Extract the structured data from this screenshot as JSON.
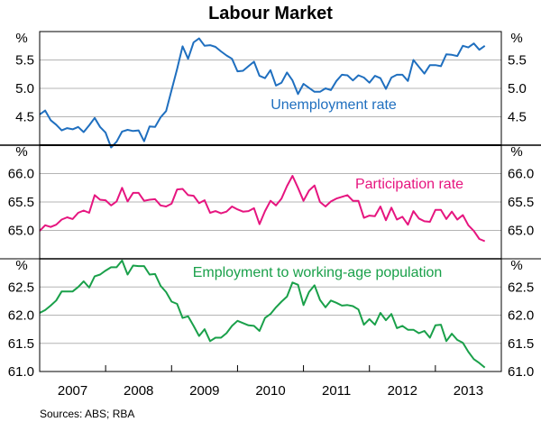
{
  "chart_data": {
    "type": "line",
    "title": "Labour Market",
    "source": "Sources: ABS; RBA",
    "x_range": [
      2007.0,
      2013.75
    ],
    "x_axis_years": [
      "2007",
      "2008",
      "2009",
      "2010",
      "2011",
      "2012",
      "2013"
    ],
    "xlim": [
      2007,
      2014
    ],
    "grid": true,
    "panels": [
      {
        "unit": "%",
        "ylim": [
          4.0,
          6.0
        ],
        "ticks": [
          "4.5",
          "5.0",
          "5.5"
        ],
        "series": {
          "name": "Unemployment rate",
          "color": "#1f6fbf",
          "values": [
            4.54,
            4.61,
            4.44,
            4.36,
            4.26,
            4.3,
            4.28,
            4.32,
            4.23,
            4.35,
            4.48,
            4.32,
            4.22,
            3.96,
            4.06,
            4.24,
            4.27,
            4.25,
            4.26,
            4.07,
            4.33,
            4.32,
            4.49,
            4.6,
            4.97,
            5.34,
            5.74,
            5.52,
            5.81,
            5.88,
            5.75,
            5.76,
            5.73,
            5.65,
            5.58,
            5.52,
            5.3,
            5.31,
            5.39,
            5.47,
            5.22,
            5.18,
            5.32,
            5.05,
            5.1,
            5.28,
            5.14,
            4.9,
            5.08,
            5.01,
            4.94,
            4.94,
            5.0,
            4.97,
            5.13,
            5.24,
            5.23,
            5.14,
            5.23,
            5.19,
            5.1,
            5.22,
            5.18,
            4.99,
            5.19,
            5.24,
            5.24,
            5.13,
            5.5,
            5.38,
            5.26,
            5.41,
            5.41,
            5.39,
            5.6,
            5.59,
            5.57,
            5.75,
            5.72,
            5.79,
            5.68,
            5.75
          ]
        }
      },
      {
        "unit": "%",
        "ylim": [
          64.5,
          66.5
        ],
        "ticks": [
          "65.0",
          "65.5",
          "66.0"
        ],
        "series": {
          "name": "Participation rate",
          "color": "#e6157f",
          "values": [
            64.99,
            65.09,
            65.06,
            65.1,
            65.19,
            65.23,
            65.2,
            65.31,
            65.35,
            65.31,
            65.62,
            65.54,
            65.53,
            65.44,
            65.51,
            65.75,
            65.51,
            65.66,
            65.66,
            65.52,
            65.54,
            65.55,
            65.44,
            65.42,
            65.47,
            65.72,
            65.73,
            65.62,
            65.61,
            65.48,
            65.53,
            65.31,
            65.34,
            65.3,
            65.33,
            65.42,
            65.37,
            65.33,
            65.34,
            65.39,
            65.11,
            65.34,
            65.52,
            65.44,
            65.56,
            65.78,
            65.96,
            65.75,
            65.52,
            65.7,
            65.79,
            65.5,
            65.42,
            65.51,
            65.56,
            65.59,
            65.62,
            65.52,
            65.52,
            65.22,
            65.26,
            65.25,
            65.42,
            65.18,
            65.4,
            65.19,
            65.24,
            65.1,
            65.34,
            65.21,
            65.16,
            65.15,
            65.36,
            65.36,
            65.2,
            65.33,
            65.19,
            65.27,
            65.09,
            64.99,
            64.85,
            64.81
          ]
        }
      },
      {
        "unit": "%",
        "ylim": [
          61.0,
          63.0
        ],
        "ticks": [
          "61.0",
          "61.5",
          "62.0",
          "62.5"
        ],
        "series": {
          "name": "Employment to working-age population",
          "color": "#1aa04a",
          "values": [
            62.04,
            62.09,
            62.17,
            62.26,
            62.42,
            62.42,
            62.42,
            62.5,
            62.6,
            62.49,
            62.69,
            62.72,
            62.79,
            62.85,
            62.85,
            62.97,
            62.72,
            62.88,
            62.87,
            62.87,
            62.72,
            62.73,
            62.52,
            62.41,
            62.24,
            62.2,
            61.95,
            61.98,
            61.81,
            61.63,
            61.75,
            61.54,
            61.6,
            61.6,
            61.68,
            61.81,
            61.9,
            61.86,
            61.82,
            61.81,
            61.72,
            61.95,
            62.02,
            62.14,
            62.24,
            62.33,
            62.58,
            62.54,
            62.18,
            62.41,
            62.53,
            62.27,
            62.14,
            62.26,
            62.22,
            62.17,
            62.18,
            62.16,
            62.1,
            61.83,
            61.93,
            61.83,
            62.04,
            61.91,
            62.02,
            61.77,
            61.81,
            61.74,
            61.74,
            61.68,
            61.72,
            61.6,
            61.82,
            61.83,
            61.54,
            61.67,
            61.56,
            61.51,
            61.35,
            61.22,
            61.15,
            61.07
          ]
        }
      }
    ]
  }
}
